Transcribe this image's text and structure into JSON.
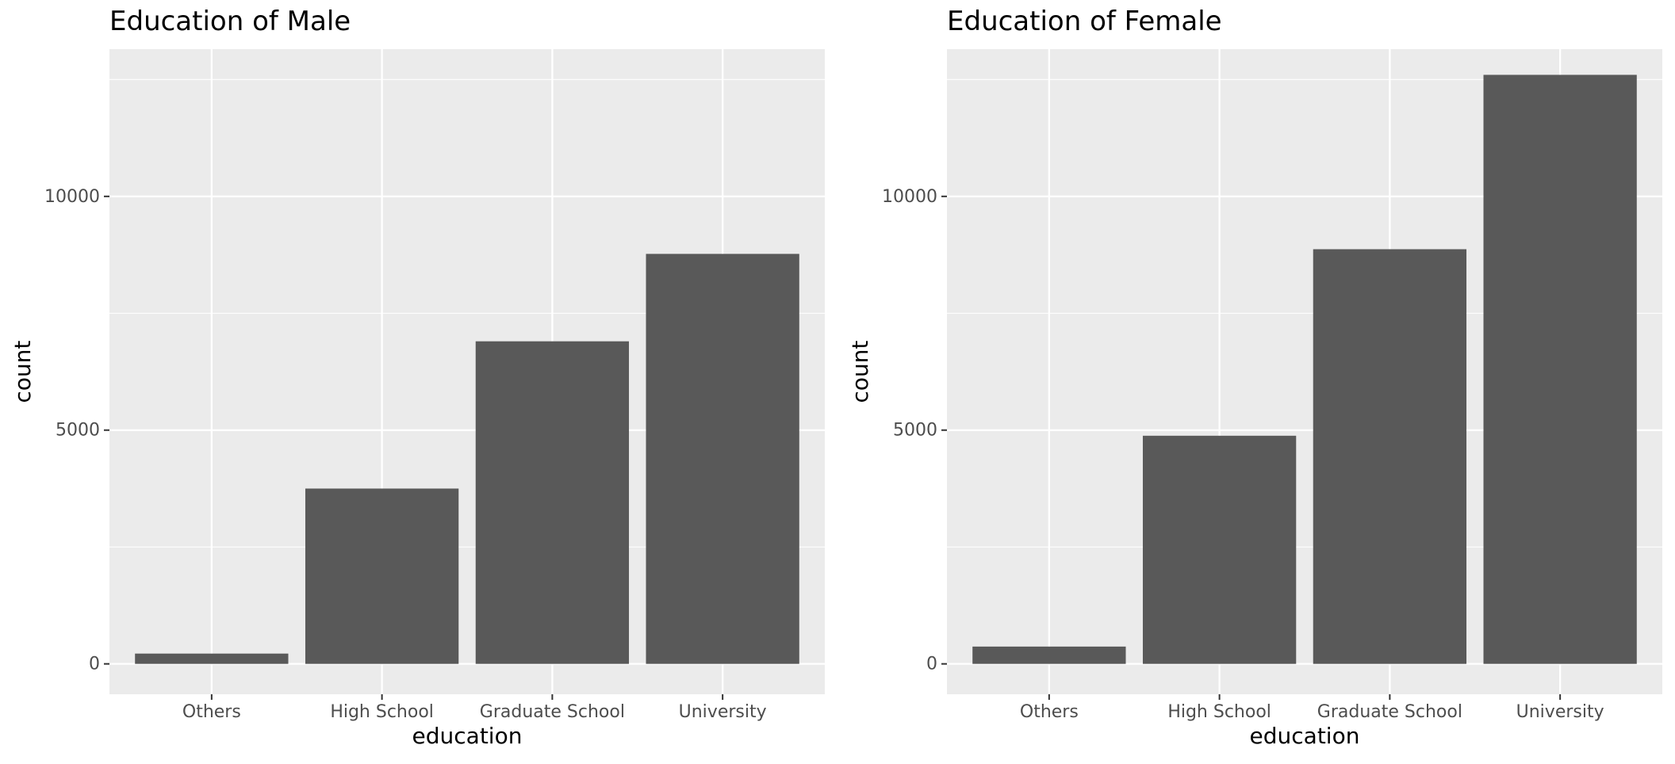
{
  "colors": {
    "panel_background": "#EBEBEB",
    "grid_major": "#FFFFFF",
    "bar_fill": "#595959",
    "axis_text": "#4D4D4D",
    "title_text": "#000000"
  },
  "chart_data": [
    {
      "type": "bar",
      "title": "Education of Male",
      "xlabel": "education",
      "ylabel": "count",
      "categories": [
        "Others",
        "High School",
        "Graduate School",
        "University"
      ],
      "values": [
        220,
        3750,
        6900,
        8770
      ],
      "ylim": [
        -650,
        13150
      ],
      "yticks": [
        0,
        5000,
        10000
      ],
      "grid": true,
      "legend": "none"
    },
    {
      "type": "bar",
      "title": "Education of Female",
      "xlabel": "education",
      "ylabel": "count",
      "categories": [
        "Others",
        "High School",
        "Graduate School",
        "University"
      ],
      "values": [
        370,
        4880,
        8870,
        12600
      ],
      "ylim": [
        -650,
        13150
      ],
      "yticks": [
        0,
        5000,
        10000
      ],
      "grid": true,
      "legend": "none"
    }
  ]
}
